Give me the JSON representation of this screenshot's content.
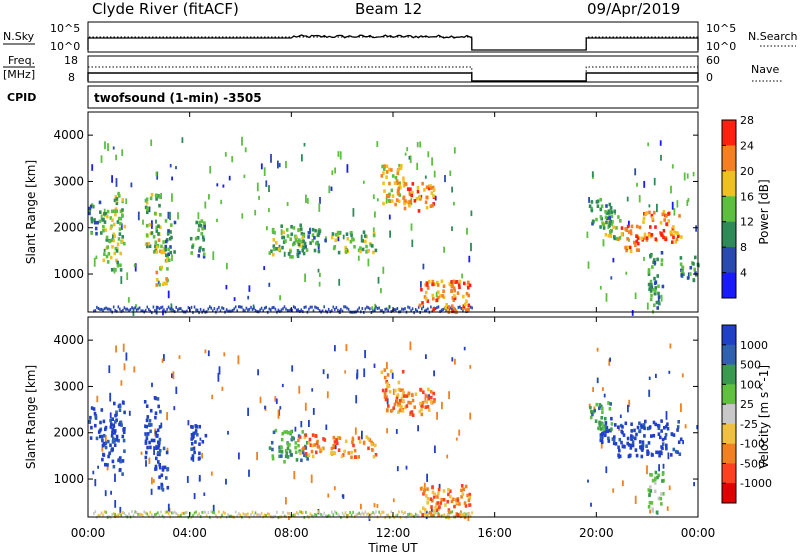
{
  "header": {
    "station": "Clyde River (fitACF)",
    "beam": "Beam 12",
    "date": "09/Apr/2019"
  },
  "strip": {
    "nsky_label": "N.Sky",
    "nsearch_label": "N.Search",
    "freq_label": "Freq.",
    "freq_unit": "[MHz]",
    "nave_label": "Nave",
    "cpid_label": "CPID",
    "cpid_value": "twofsound (1-min) -3505",
    "nsky_ticks": [
      "10^5",
      "10^0"
    ],
    "nsearch_ticks": [
      "10^5",
      "10^0"
    ],
    "freq_ticks": [
      "18",
      "8"
    ],
    "nave_ticks": [
      "60",
      "0"
    ]
  },
  "xaxis": {
    "label": "Time UT",
    "ticks": [
      "00:00",
      "04:00",
      "08:00",
      "12:00",
      "16:00",
      "20:00",
      "00:00"
    ]
  },
  "chart_data": [
    {
      "type": "heatmap",
      "panel": "power",
      "ylabel": "Slant Range [km]",
      "yticks": [
        "1000",
        "2000",
        "3000",
        "4000"
      ],
      "ylim": [
        180,
        4500
      ],
      "xlim": [
        0,
        24
      ],
      "data_gap_hours": [
        15.1,
        19.6
      ],
      "colorbar_label": "Power [dB]",
      "colorbar_ticks": [
        "4",
        "8",
        "12",
        "16",
        "20",
        "24",
        "28"
      ],
      "colorbar_colors": [
        "#1a1aff",
        "#2a4ab0",
        "#2e8b57",
        "#5cbf40",
        "#f0c020",
        "#f58020",
        "#ff2010"
      ],
      "regions": [
        {
          "t": [
            0.0,
            0.5
          ],
          "r": [
            1900,
            2600
          ],
          "level": 2
        },
        {
          "t": [
            0.5,
            1.0
          ],
          "r": [
            1300,
            2400
          ],
          "level": 3
        },
        {
          "t": [
            0.9,
            1.4
          ],
          "r": [
            1100,
            2800
          ],
          "level": 3
        },
        {
          "t": [
            2.2,
            2.8
          ],
          "r": [
            1500,
            2800
          ],
          "level": 3
        },
        {
          "t": [
            2.6,
            3.1
          ],
          "r": [
            800,
            1800
          ],
          "level": 4
        },
        {
          "t": [
            3.0,
            3.4
          ],
          "r": [
            1300,
            2200
          ],
          "level": 2
        },
        {
          "t": [
            4.0,
            4.6
          ],
          "r": [
            1400,
            2200
          ],
          "level": 2
        },
        {
          "t": [
            7.1,
            8.6
          ],
          "r": [
            1400,
            2100
          ],
          "level": 3
        },
        {
          "t": [
            8.2,
            9.3
          ],
          "r": [
            1500,
            2000
          ],
          "level": 2
        },
        {
          "t": [
            9.5,
            11.3
          ],
          "r": [
            1500,
            1950
          ],
          "level": 3
        },
        {
          "t": [
            11.5,
            12.4
          ],
          "r": [
            2500,
            3400
          ],
          "level": 4
        },
        {
          "t": [
            12.0,
            13.6
          ],
          "r": [
            2400,
            3000
          ],
          "level": 5
        },
        {
          "t": [
            13.0,
            15.0
          ],
          "r": [
            200,
            900
          ],
          "level": 5
        },
        {
          "t": [
            20.1,
            21.0
          ],
          "r": [
            1800,
            2400
          ],
          "level": 3
        },
        {
          "t": [
            20.8,
            21.8
          ],
          "r": [
            1500,
            2100
          ],
          "level": 5
        },
        {
          "t": [
            21.8,
            23.3
          ],
          "r": [
            1700,
            2400
          ],
          "level": 5
        },
        {
          "t": [
            22.0,
            22.6
          ],
          "r": [
            300,
            1500
          ],
          "level": 2
        },
        {
          "t": [
            19.7,
            20.6
          ],
          "r": [
            2100,
            2700
          ],
          "level": 2
        },
        {
          "t": [
            23.2,
            24.0
          ],
          "r": [
            900,
            1400
          ],
          "level": 2
        }
      ]
    },
    {
      "type": "heatmap",
      "panel": "velocity",
      "ylabel": "Slant Range [km]",
      "yticks": [
        "1000",
        "2000",
        "3000",
        "4000"
      ],
      "ylim": [
        180,
        4500
      ],
      "xlim": [
        0,
        24
      ],
      "data_gap_hours": [
        15.1,
        19.6
      ],
      "colorbar_label": "Velocity [m s^-1]",
      "colorbar_ticks": [
        "1000",
        "500",
        "100",
        "25",
        "-25",
        "-100",
        "-500",
        "-1000"
      ],
      "colorbar_colors": [
        "#2040c8",
        "#3060b0",
        "#3a9a50",
        "#60c040",
        "#c8c8c8",
        "#f0c040",
        "#f08020",
        "#ff4020",
        "#e00000"
      ],
      "regions": [
        {
          "t": [
            0.0,
            0.5
          ],
          "r": [
            1900,
            2600
          ],
          "level": 0
        },
        {
          "t": [
            0.5,
            1.0
          ],
          "r": [
            1300,
            2400
          ],
          "level": 0
        },
        {
          "t": [
            0.9,
            1.4
          ],
          "r": [
            1100,
            2800
          ],
          "level": 0
        },
        {
          "t": [
            2.2,
            2.8
          ],
          "r": [
            1500,
            2800
          ],
          "level": 0
        },
        {
          "t": [
            2.6,
            3.1
          ],
          "r": [
            800,
            1800
          ],
          "level": 0
        },
        {
          "t": [
            4.0,
            4.6
          ],
          "r": [
            1400,
            2200
          ],
          "level": 0
        },
        {
          "t": [
            7.1,
            8.6
          ],
          "r": [
            1400,
            2100
          ],
          "level": 2
        },
        {
          "t": [
            8.2,
            9.3
          ],
          "r": [
            1500,
            2000
          ],
          "level": 6
        },
        {
          "t": [
            9.5,
            11.3
          ],
          "r": [
            1500,
            1950
          ],
          "level": 6
        },
        {
          "t": [
            11.5,
            12.4
          ],
          "r": [
            2500,
            3400
          ],
          "level": 6
        },
        {
          "t": [
            12.0,
            13.6
          ],
          "r": [
            2400,
            3000
          ],
          "level": 6
        },
        {
          "t": [
            13.0,
            15.0
          ],
          "r": [
            200,
            900
          ],
          "level": 6
        },
        {
          "t": [
            20.1,
            21.0
          ],
          "r": [
            1800,
            2400
          ],
          "level": 0
        },
        {
          "t": [
            20.8,
            23.3
          ],
          "r": [
            1500,
            2300
          ],
          "level": 0
        },
        {
          "t": [
            19.7,
            20.6
          ],
          "r": [
            2100,
            2700
          ],
          "level": 2
        },
        {
          "t": [
            22.0,
            22.6
          ],
          "r": [
            300,
            1200
          ],
          "level": 3
        }
      ]
    }
  ]
}
